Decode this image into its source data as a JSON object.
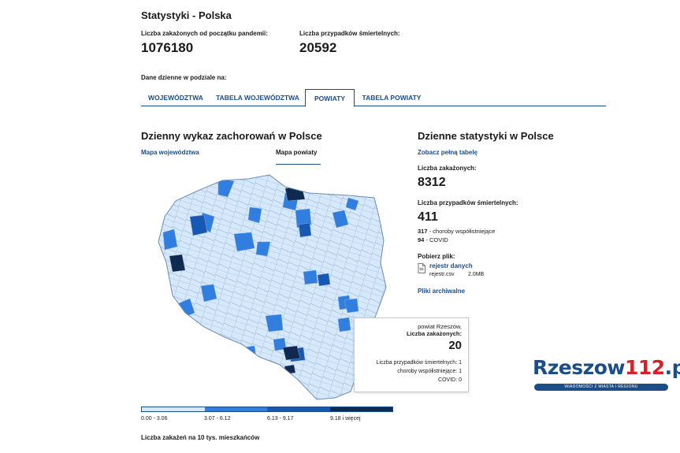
{
  "page": {
    "title": "Statystyki - Polska",
    "total_cases_label": "Liczba zakażonych od początku pandemii:",
    "total_cases_value": "1076180",
    "total_deaths_label": "Liczba przypadków śmiertelnych:",
    "total_deaths_value": "20592",
    "daily_split_label": "Dane dzienne w podziale na:"
  },
  "tabs": [
    {
      "label": "WOJEWÓDZTWA",
      "active": false
    },
    {
      "label": "TABELA WOJEWÓDZTWA",
      "active": false
    },
    {
      "label": "POWIATY",
      "active": true
    },
    {
      "label": "TABELA POWIATY",
      "active": false
    }
  ],
  "map_section": {
    "title": "Dzienny wykaz zachorowań w Polsce",
    "subtab_voivodeships": "Mapa województwa",
    "subtab_counties": "Mapa powiaty",
    "legend": [
      {
        "label": "0.00 - 3.06",
        "color": "#d6e8fb"
      },
      {
        "label": "3.07 - 6.12",
        "color": "#2f7ee0"
      },
      {
        "label": "6.13 - 9.17",
        "color": "#1658b3"
      },
      {
        "label": "9.18 i więcej",
        "color": "#0f2a4e"
      }
    ],
    "legend_caption": "Liczba zakażeń na 10 tys. mieszkańców"
  },
  "tooltip": {
    "county": "powiat Rzeszów,",
    "cases_label": "Liczba zakażonych:",
    "cases_value": "20",
    "deaths_line": "Liczba przypadków śmiertelnych: 1",
    "comorb_line": "choroby współistniejące: 1",
    "covid_line": "COVID: 0"
  },
  "stats_section": {
    "title": "Dzienne statystyki w Polsce",
    "full_table_link": "Zobacz pełną tabelę",
    "cases_label": "Liczba zakażonych:",
    "cases_value": "8312",
    "deaths_label": "Liczba przypadków śmiertelnych:",
    "deaths_value": "411",
    "comorb_value": "317",
    "comorb_label": " - choroby współistniejące",
    "covid_value": "94",
    "covid_label": " - COVID",
    "download_label": "Pobierz plik:",
    "file_link": "rejestr danych",
    "file_name": "rejestr.csv",
    "file_size": "2.0MB",
    "archive_link": "Pliki archiwalne"
  },
  "logo": {
    "part1": "Rzeszow",
    "part2": "112",
    "part3": ".pl",
    "tagline": "WIADOMOŚCI Z MIASTA I REGIONU",
    "colors": {
      "blue": "#1b4d89",
      "red": "#d6202a"
    }
  }
}
